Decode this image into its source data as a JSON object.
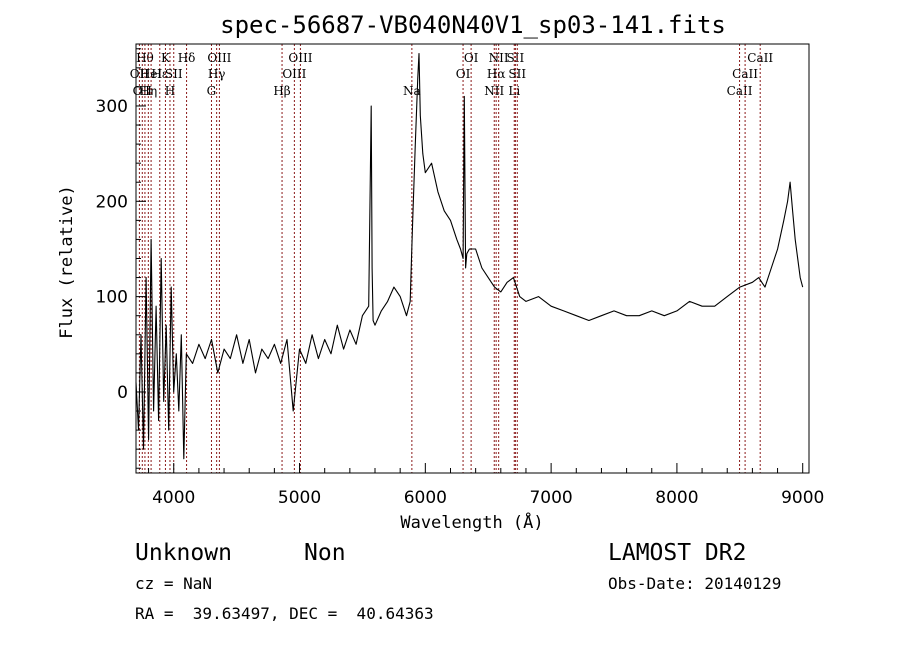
{
  "chart_data": {
    "type": "line",
    "title": "spec-56687-VB040N40V1_sp03-141.fits",
    "xlabel": "Wavelength (Å)",
    "ylabel": "Flux (relative)",
    "xlim": [
      3700,
      9050
    ],
    "ylim": [
      -85,
      365
    ],
    "xticks": [
      4000,
      5000,
      6000,
      7000,
      8000,
      9000
    ],
    "yticks": [
      0,
      100,
      200,
      300
    ],
    "grid": false,
    "line_color": "#000000",
    "marker_color": "#8b1a1a",
    "series": [
      {
        "x": [
          3700,
          3720,
          3740,
          3760,
          3780,
          3800,
          3820,
          3840,
          3860,
          3880,
          3900,
          3920,
          3940,
          3960,
          3980,
          4000,
          4020,
          4040,
          4060,
          4080,
          4100,
          4150,
          4200,
          4250,
          4300,
          4350,
          4400,
          4450,
          4500,
          4550,
          4600,
          4650,
          4700,
          4750,
          4800,
          4850,
          4900,
          4950,
          5000,
          5050,
          5100,
          5150,
          5200,
          5250,
          5300,
          5350,
          5400,
          5450,
          5500,
          5550,
          5570,
          5577,
          5585,
          5600,
          5650,
          5700,
          5750,
          5800,
          5850,
          5880,
          5890,
          5900,
          5920,
          5940,
          5950,
          5960,
          5980,
          6000,
          6050,
          6100,
          6150,
          6200,
          6250,
          6280,
          6300,
          6310,
          6320,
          6330,
          6350,
          6400,
          6450,
          6500,
          6550,
          6600,
          6650,
          6700,
          6750,
          6800,
          6900,
          7000,
          7100,
          7200,
          7300,
          7400,
          7500,
          7600,
          7700,
          7800,
          7900,
          8000,
          8100,
          8200,
          8300,
          8400,
          8500,
          8600,
          8650,
          8700,
          8750,
          8800,
          8850,
          8880,
          8900,
          8920,
          8940,
          8960,
          8980,
          9000
        ],
        "y": [
          10,
          -40,
          60,
          -60,
          120,
          -50,
          160,
          -20,
          90,
          -30,
          140,
          -10,
          70,
          -40,
          110,
          0,
          40,
          -20,
          60,
          -70,
          40,
          30,
          50,
          35,
          55,
          20,
          45,
          35,
          60,
          30,
          55,
          20,
          45,
          35,
          50,
          30,
          55,
          -20,
          45,
          30,
          60,
          35,
          55,
          40,
          70,
          45,
          65,
          50,
          80,
          90,
          300,
          130,
          75,
          70,
          85,
          95,
          110,
          100,
          80,
          95,
          140,
          180,
          260,
          330,
          355,
          290,
          250,
          230,
          240,
          210,
          190,
          180,
          160,
          150,
          140,
          310,
          130,
          145,
          150,
          150,
          130,
          120,
          110,
          105,
          115,
          120,
          100,
          95,
          100,
          90,
          85,
          80,
          75,
          80,
          85,
          80,
          80,
          85,
          80,
          85,
          95,
          90,
          90,
          100,
          110,
          115,
          120,
          110,
          130,
          150,
          180,
          200,
          220,
          190,
          160,
          140,
          120,
          110
        ]
      }
    ],
    "line_markers": [
      {
        "x": 3727,
        "label": "OII",
        "row": 2
      },
      {
        "x": 3750,
        "label": "OII",
        "row": 3
      },
      {
        "x": 3771,
        "label": "Hθ",
        "row": 1
      },
      {
        "x": 3798,
        "label": "Hη",
        "row": 3
      },
      {
        "x": 3820,
        "label": "HeI",
        "row": 2
      },
      {
        "x": 3889,
        "label": "Hε",
        "row": 2
      },
      {
        "x": 3934,
        "label": "K",
        "row": 1
      },
      {
        "x": 3970,
        "label": "H",
        "row": 3
      },
      {
        "x": 4000,
        "label": "SII",
        "row": 2
      },
      {
        "x": 4102,
        "label": "Hδ",
        "row": 1
      },
      {
        "x": 4300,
        "label": "G",
        "row": 3
      },
      {
        "x": 4341,
        "label": "Hγ",
        "row": 2
      },
      {
        "x": 4363,
        "label": "OIII",
        "row": 1
      },
      {
        "x": 4861,
        "label": "Hβ",
        "row": 3
      },
      {
        "x": 4959,
        "label": "OIII",
        "row": 2
      },
      {
        "x": 5007,
        "label": "OIII",
        "row": 1
      },
      {
        "x": 5893,
        "label": "Na",
        "row": 3
      },
      {
        "x": 6300,
        "label": "OI",
        "row": 2
      },
      {
        "x": 6364,
        "label": "OI",
        "row": 1
      },
      {
        "x": 6548,
        "label": "NII",
        "row": 3
      },
      {
        "x": 6563,
        "label": "Hα",
        "row": 2
      },
      {
        "x": 6583,
        "label": "NII",
        "row": 1
      },
      {
        "x": 6707,
        "label": "Li",
        "row": 3
      },
      {
        "x": 6716,
        "label": "SII",
        "row": 1
      },
      {
        "x": 6731,
        "label": "SII",
        "row": 2
      },
      {
        "x": 8498,
        "label": "CaII",
        "row": 3
      },
      {
        "x": 8542,
        "label": "CaII",
        "row": 2
      },
      {
        "x": 8662,
        "label": "CaII",
        "row": 1
      }
    ]
  },
  "info": {
    "class_text": "Unknown",
    "subclass_text": "Non",
    "survey": "LAMOST DR2",
    "cz": "cz = NaN",
    "obs_date": "Obs-Date: 20140129",
    "coords": "RA =  39.63497, DEC =  40.64363"
  }
}
